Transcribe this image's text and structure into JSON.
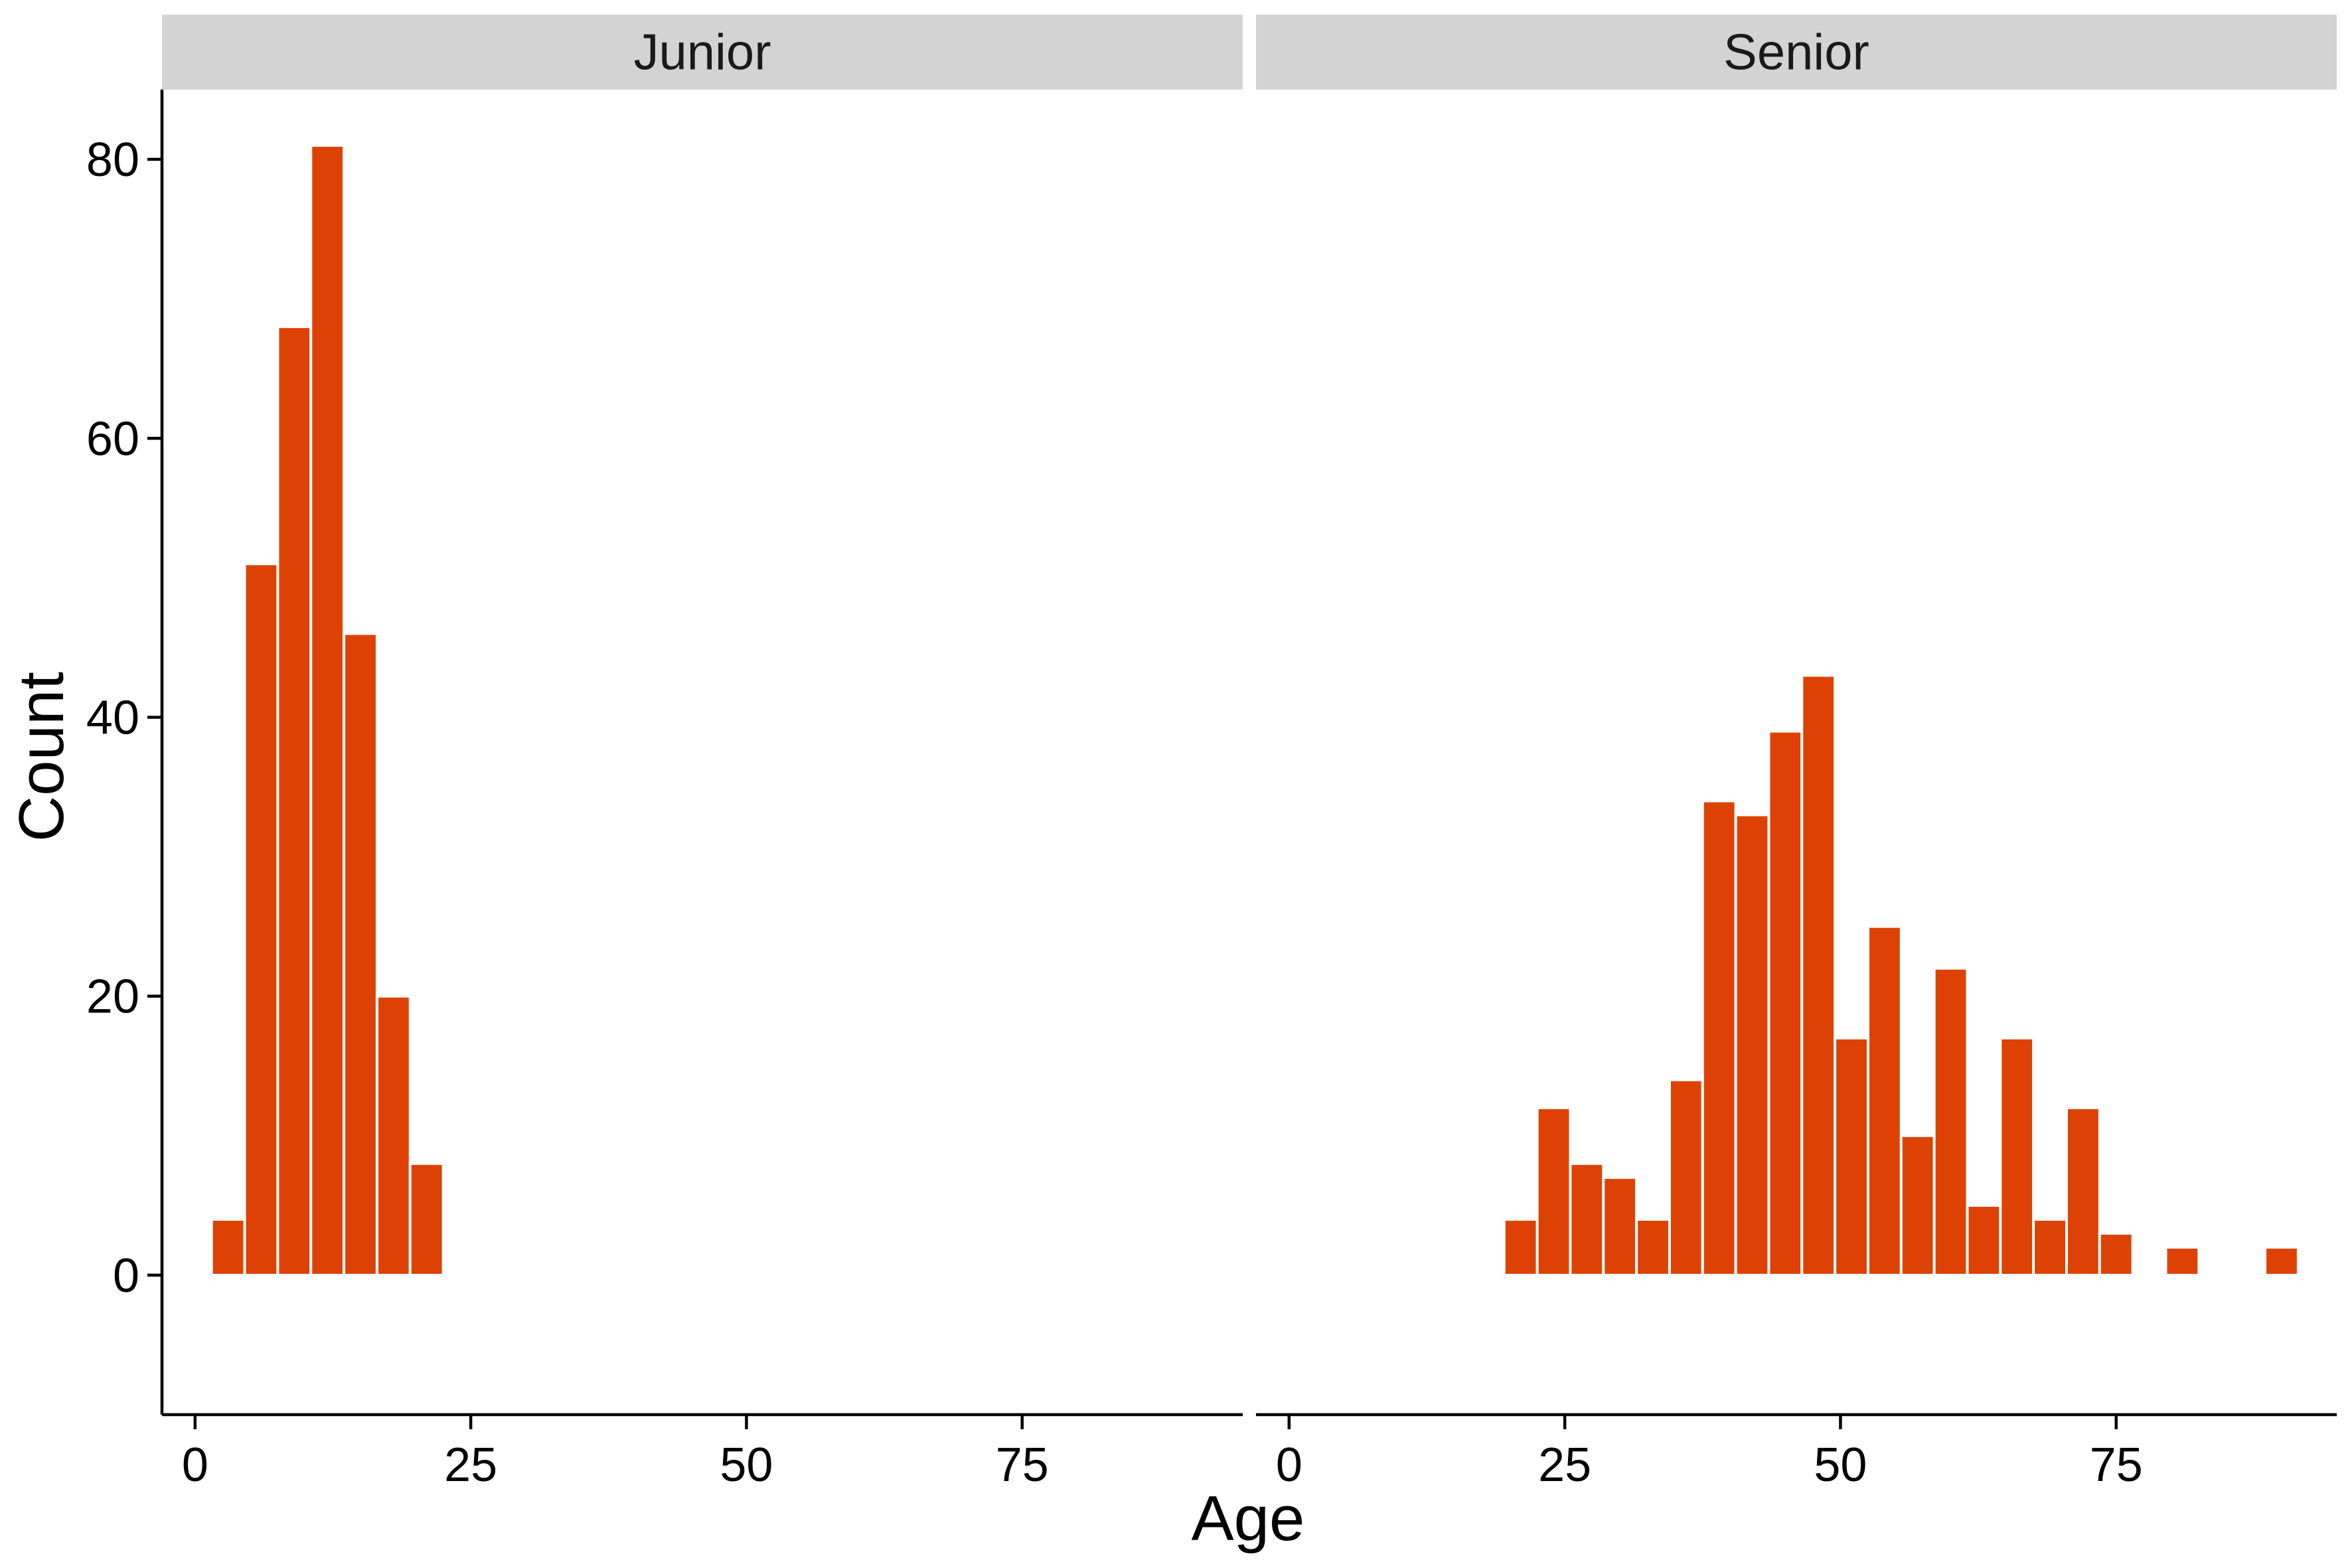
{
  "chart_data": {
    "type": "bar",
    "title": "",
    "xlabel": "Age",
    "ylabel": "Count",
    "xlim": [
      -3,
      95
    ],
    "ylim": [
      -10,
      85
    ],
    "x_ticks": [
      0,
      25,
      50,
      75
    ],
    "y_ticks": [
      0,
      20,
      40,
      60,
      80
    ],
    "bin_width": 3,
    "bar_color": "#DD4204",
    "strip_color": "#D3D3D3",
    "grid": false,
    "legend": "none",
    "facets": [
      {
        "name": "Junior",
        "bins": [
          {
            "x": 3,
            "count": 4
          },
          {
            "x": 6,
            "count": 51
          },
          {
            "x": 9,
            "count": 68
          },
          {
            "x": 12,
            "count": 81
          },
          {
            "x": 15,
            "count": 46
          },
          {
            "x": 18,
            "count": 20
          },
          {
            "x": 21,
            "count": 8
          }
        ]
      },
      {
        "name": "Senior",
        "bins": [
          {
            "x": 21,
            "count": 4
          },
          {
            "x": 24,
            "count": 12
          },
          {
            "x": 27,
            "count": 8
          },
          {
            "x": 30,
            "count": 7
          },
          {
            "x": 33,
            "count": 4
          },
          {
            "x": 36,
            "count": 14
          },
          {
            "x": 39,
            "count": 34
          },
          {
            "x": 42,
            "count": 33
          },
          {
            "x": 45,
            "count": 39
          },
          {
            "x": 48,
            "count": 43
          },
          {
            "x": 51,
            "count": 17
          },
          {
            "x": 54,
            "count": 25
          },
          {
            "x": 57,
            "count": 10
          },
          {
            "x": 60,
            "count": 22
          },
          {
            "x": 63,
            "count": 5
          },
          {
            "x": 66,
            "count": 17
          },
          {
            "x": 69,
            "count": 4
          },
          {
            "x": 72,
            "count": 12
          },
          {
            "x": 75,
            "count": 3
          },
          {
            "x": 81,
            "count": 2
          },
          {
            "x": 90,
            "count": 2
          }
        ]
      }
    ]
  }
}
